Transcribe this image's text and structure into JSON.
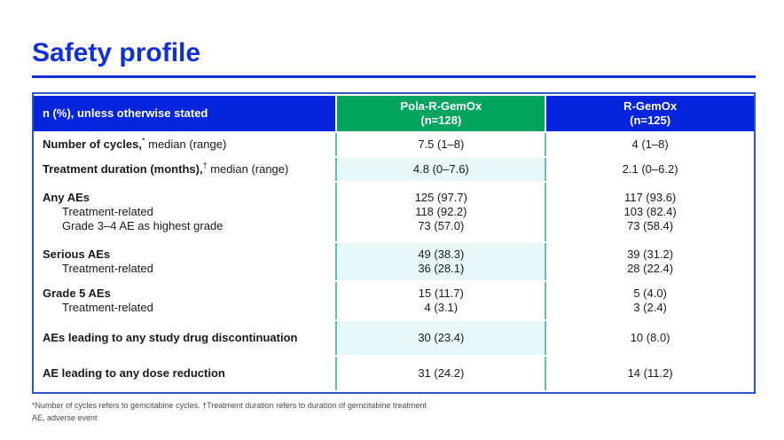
{
  "slide": {
    "title": "Safety profile"
  },
  "table": {
    "header": {
      "label": "n (%), unless otherwise stated",
      "pola_line1": "Pola-R-GemOx",
      "pola_line2": "(n=128)",
      "rgemox_line1": "R-GemOx",
      "rgemox_line2": "(n=125)"
    },
    "rows": [
      {
        "label_bold": "Number of cycles,",
        "label_sup": "*",
        "label_rest": " median (range)",
        "subs": [],
        "pola": [
          "7.5 (1–8)"
        ],
        "rgemox": [
          "4 (1–8)"
        ],
        "shaded": false
      },
      {
        "label_bold": "Treatment duration (months),",
        "label_sup": "†",
        "label_rest": " median (range)",
        "subs": [],
        "pola": [
          "4.8 (0–7.6)"
        ],
        "rgemox": [
          "2.1 (0–6.2)"
        ],
        "shaded": true
      },
      {
        "label_bold": "Any AEs",
        "subs": [
          "Treatment-related",
          "Grade 3–4 AE as highest grade"
        ],
        "pola": [
          "125 (97.7)",
          "118 (92.2)",
          "73 (57.0)"
        ],
        "rgemox": [
          "117 (93.6)",
          "103 (82.4)",
          "73 (58.4)"
        ],
        "shaded": false
      },
      {
        "label_bold": "Serious AEs",
        "subs": [
          "Treatment-related"
        ],
        "pola": [
          "49 (38.3)",
          "36 (28.1)"
        ],
        "rgemox": [
          "39 (31.2)",
          "28 (22.4)"
        ],
        "shaded": true
      },
      {
        "label_bold": "Grade 5 AEs",
        "subs": [
          "Treatment-related"
        ],
        "pola": [
          "15 (11.7)",
          "4 (3.1)"
        ],
        "rgemox": [
          "5 (4.0)",
          "3 (2.4)"
        ],
        "shaded": false
      },
      {
        "label_bold": "AEs leading to any study drug discontinuation",
        "subs": [],
        "pola": [
          "30 (23.4)"
        ],
        "rgemox": [
          "10 (8.0)"
        ],
        "shaded": true
      },
      {
        "label_bold": "AE leading to any dose reduction",
        "subs": [],
        "pola": [
          "31 (24.2)"
        ],
        "rgemox": [
          "14 (11.2)"
        ],
        "shaded": false
      }
    ]
  },
  "footnotes": {
    "line1": "*Number of cycles refers to gemcitabine cycles. †Treatment duration refers to duration of gemcitabine treatment",
    "line2": "AE, adverse event"
  },
  "colors": {
    "title_blue": "#1130d6",
    "header_blue": "#0525dc",
    "header_green": "#00a55d",
    "divider_teal": "#5fc3b3",
    "shaded_cell": "#e8f8f8",
    "outer_border_blue": "#2b59c8"
  }
}
